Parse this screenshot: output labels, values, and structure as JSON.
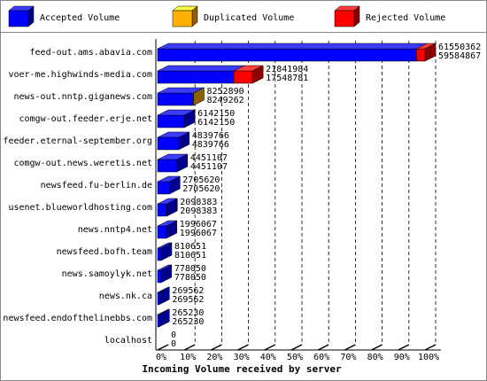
{
  "chart_data": {
    "type": "bar3d",
    "orientation": "horizontal",
    "stacked": true,
    "x_label": "Incoming Volume received by server",
    "categories": [
      "feed-out.ams.abavia.com",
      "voer-me.highwinds-media.com",
      "news-out.nntp.giganews.com",
      "comgw-out.feeder.erje.net",
      "feeder.eternal-september.org",
      "comgw-out.news.weretis.net",
      "newsfeed.fu-berlin.de",
      "usenet.blueworldhosting.com",
      "news.nntp4.net",
      "newsfeed.bofh.team",
      "news.samoylyk.net",
      "news.nk.ca",
      "newsfeed.endofthelinebbs.com",
      "localhost"
    ],
    "series": [
      {
        "name": "Accepted Volume",
        "color": "#0000ff",
        "values": [
          59584867,
          17548781,
          8249262,
          6142150,
          4839766,
          4451107,
          2705620,
          2098383,
          1996067,
          810651,
          778050,
          269562,
          265230,
          0
        ]
      },
      {
        "name": "Duplicated Volume",
        "color": "#ffb000",
        "values": [
          0,
          0,
          3628,
          0,
          0,
          0,
          0,
          0,
          0,
          0,
          0,
          0,
          0,
          0
        ]
      },
      {
        "name": "Rejected Volume",
        "color": "#ff0000",
        "values": [
          1965495,
          4293203,
          0,
          0,
          0,
          0,
          0,
          0,
          0,
          0,
          0,
          0,
          0,
          0
        ]
      }
    ],
    "offered": [
      61550362,
      21841984,
      8252890,
      6142150,
      4839766,
      4451107,
      2705620,
      2098383,
      1996067,
      810651,
      778050,
      269562,
      265230,
      0
    ],
    "accepted": [
      59584867,
      17548781,
      8249262,
      6142150,
      4839766,
      4451107,
      2705620,
      2098383,
      1996067,
      810651,
      778050,
      269562,
      265230,
      0
    ],
    "xlim": [
      0,
      61550362
    ],
    "xticks": [
      {
        "value": 0,
        "label": "0%"
      },
      {
        "value": 6155036.2,
        "label": "10%"
      },
      {
        "value": 12310072.4,
        "label": "20%"
      },
      {
        "value": 18465108.6,
        "label": "30%"
      },
      {
        "value": 24620144.8,
        "label": "40%"
      },
      {
        "value": 30775181,
        "label": "50%"
      },
      {
        "value": 36930217.2,
        "label": "60%"
      },
      {
        "value": 43085253.4,
        "label": "70%"
      },
      {
        "value": 49240289.6,
        "label": "80%"
      },
      {
        "value": 55395325.8,
        "label": "90%"
      },
      {
        "value": 61550362,
        "label": "100%"
      }
    ],
    "grid": true
  }
}
